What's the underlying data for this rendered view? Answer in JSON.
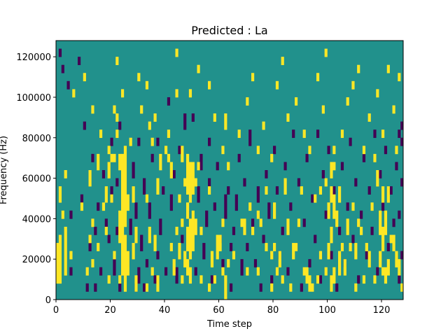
{
  "chart_data": {
    "type": "heatmap",
    "title": "Predicted : La",
    "xlabel": "Time step",
    "ylabel": "Frequency (Hz)",
    "xlim": [
      0,
      128
    ],
    "ylim": [
      0,
      128000
    ],
    "x_ticks": [
      0,
      20,
      40,
      60,
      80,
      100,
      120
    ],
    "y_ticks": [
      0,
      20000,
      40000,
      60000,
      80000,
      100000,
      120000
    ],
    "x_tick_labels": [
      "0",
      "20",
      "40",
      "60",
      "80",
      "100",
      "120"
    ],
    "y_tick_labels": [
      "0",
      "20000",
      "40000",
      "60000",
      "80000",
      "100000",
      "120000"
    ],
    "n_time_steps": 128,
    "n_freq_bins": 32,
    "bin_hz": 4000,
    "colormap": "viridis",
    "colors": {
      "low": "#440154",
      "mid": "#21918c",
      "high": "#fde725"
    },
    "background_value": 0,
    "high_cells": [
      [
        0,
        2,
        7
      ],
      [
        1,
        2,
        8
      ],
      [
        3,
        3,
        9
      ],
      [
        5,
        5,
        6
      ],
      [
        2,
        10,
        11
      ],
      [
        1,
        12,
        14
      ],
      [
        3,
        15,
        16
      ],
      [
        11,
        3,
        4
      ],
      [
        12,
        7,
        8
      ],
      [
        9,
        11,
        12
      ],
      [
        12,
        14,
        16
      ],
      [
        13,
        4,
        5
      ],
      [
        13,
        9,
        10
      ],
      [
        15,
        6,
        7
      ],
      [
        15,
        16,
        18
      ],
      [
        17,
        11,
        12
      ],
      [
        18,
        8,
        9
      ],
      [
        18,
        12,
        14
      ],
      [
        19,
        2,
        3
      ],
      [
        19,
        15,
        17
      ],
      [
        20,
        12,
        13
      ],
      [
        21,
        5,
        6
      ],
      [
        21,
        17,
        18
      ],
      [
        22,
        22,
        23
      ],
      [
        22,
        29,
        30
      ],
      [
        23,
        2,
        3
      ],
      [
        23,
        7,
        11
      ],
      [
        23,
        16,
        18
      ],
      [
        24,
        3,
        8
      ],
      [
        24,
        8,
        13
      ],
      [
        24,
        16,
        18
      ],
      [
        24,
        13,
        16
      ],
      [
        25,
        1,
        8
      ],
      [
        25,
        9,
        17
      ],
      [
        25,
        17,
        19
      ],
      [
        26,
        3,
        6
      ],
      [
        26,
        11,
        13
      ],
      [
        28,
        5,
        7
      ],
      [
        28,
        12,
        14
      ],
      [
        29,
        1,
        3
      ],
      [
        29,
        7,
        9
      ],
      [
        33,
        1,
        2
      ],
      [
        33,
        12,
        13
      ],
      [
        34,
        7,
        9
      ],
      [
        35,
        3,
        4
      ],
      [
        36,
        6,
        8
      ],
      [
        37,
        1,
        3
      ],
      [
        37,
        13,
        15
      ],
      [
        38,
        17,
        18
      ],
      [
        41,
        17,
        18
      ],
      [
        41,
        20,
        21
      ],
      [
        42,
        6,
        7
      ],
      [
        42,
        15,
        17
      ],
      [
        43,
        3,
        5
      ],
      [
        44,
        8,
        9
      ],
      [
        45,
        5,
        7
      ],
      [
        45,
        12,
        13
      ],
      [
        46,
        2,
        3
      ],
      [
        46,
        9,
        10
      ],
      [
        46,
        18,
        19
      ],
      [
        47,
        4,
        6
      ],
      [
        47,
        14,
        15
      ],
      [
        48,
        3,
        5
      ],
      [
        48,
        6,
        9
      ],
      [
        48,
        10,
        12
      ],
      [
        48,
        13,
        16
      ],
      [
        48,
        16,
        18
      ],
      [
        49,
        2,
        4
      ],
      [
        49,
        5,
        10
      ],
      [
        49,
        12,
        17
      ],
      [
        49,
        25,
        26
      ],
      [
        50,
        6,
        11
      ],
      [
        50,
        13,
        17
      ],
      [
        51,
        8,
        10
      ],
      [
        51,
        14,
        15
      ],
      [
        52,
        16,
        17
      ],
      [
        53,
        2,
        3
      ],
      [
        53,
        8,
        9
      ],
      [
        56,
        1,
        2
      ],
      [
        56,
        13,
        14
      ],
      [
        57,
        4,
        6
      ],
      [
        58,
        2,
        3
      ],
      [
        59,
        5,
        8
      ],
      [
        60,
        6,
        8
      ],
      [
        61,
        3,
        4
      ],
      [
        61,
        9,
        10
      ],
      [
        62,
        0,
        3
      ],
      [
        62,
        21,
        23
      ],
      [
        63,
        4,
        5
      ],
      [
        65,
        5,
        6
      ],
      [
        68,
        9,
        10
      ],
      [
        69,
        8,
        10
      ],
      [
        70,
        3,
        4
      ],
      [
        71,
        11,
        12
      ],
      [
        72,
        8,
        9
      ],
      [
        74,
        3,
        4
      ],
      [
        74,
        10,
        11
      ],
      [
        75,
        9,
        10
      ],
      [
        77,
        6,
        7
      ],
      [
        77,
        13,
        14
      ],
      [
        79,
        1,
        2
      ],
      [
        79,
        5,
        6
      ],
      [
        80,
        6,
        7
      ],
      [
        80,
        10,
        12
      ],
      [
        81,
        3,
        4
      ],
      [
        82,
        4,
        6
      ],
      [
        83,
        2,
        3
      ],
      [
        84,
        13,
        15
      ],
      [
        85,
        8,
        9
      ],
      [
        85,
        9,
        10
      ],
      [
        86,
        1,
        2
      ],
      [
        87,
        5,
        7
      ],
      [
        88,
        6,
        7
      ],
      [
        89,
        9,
        10
      ],
      [
        90,
        13,
        14
      ],
      [
        91,
        3,
        4
      ],
      [
        92,
        2,
        4
      ],
      [
        93,
        1,
        3
      ],
      [
        94,
        1,
        2
      ],
      [
        95,
        12,
        13
      ],
      [
        96,
        2,
        3
      ],
      [
        97,
        5,
        6
      ],
      [
        97,
        13,
        14
      ],
      [
        99,
        3,
        4
      ],
      [
        99,
        14,
        15
      ],
      [
        100,
        5,
        7
      ],
      [
        100,
        10,
        12
      ],
      [
        101,
        1,
        3
      ],
      [
        101,
        7,
        9
      ],
      [
        101,
        12,
        14
      ],
      [
        101,
        15,
        17
      ],
      [
        102,
        2,
        4
      ],
      [
        102,
        10,
        13
      ],
      [
        102,
        16,
        17
      ],
      [
        103,
        9,
        11
      ],
      [
        104,
        3,
        6
      ],
      [
        104,
        12,
        14
      ],
      [
        105,
        6,
        7
      ],
      [
        106,
        3,
        5
      ],
      [
        107,
        8,
        10
      ],
      [
        108,
        6,
        7
      ],
      [
        109,
        11,
        12
      ],
      [
        110,
        1,
        2
      ],
      [
        110,
        5,
        7
      ],
      [
        111,
        9,
        10
      ],
      [
        112,
        8,
        9
      ],
      [
        113,
        2,
        3
      ],
      [
        114,
        6,
        7
      ],
      [
        115,
        4,
        6
      ],
      [
        116,
        11,
        12
      ],
      [
        117,
        2,
        3
      ],
      [
        118,
        14,
        16
      ],
      [
        119,
        4,
        6
      ],
      [
        119,
        8,
        11
      ],
      [
        120,
        3,
        4
      ],
      [
        120,
        6,
        9
      ],
      [
        120,
        12,
        14
      ],
      [
        121,
        2,
        4
      ],
      [
        121,
        8,
        11
      ],
      [
        122,
        3,
        5
      ],
      [
        122,
        12,
        14
      ],
      [
        123,
        7,
        8
      ],
      [
        124,
        6,
        8
      ],
      [
        125,
        4,
        6
      ],
      [
        126,
        3,
        5
      ],
      [
        127,
        1,
        2
      ],
      [
        6,
        25,
        26
      ],
      [
        10,
        27,
        28
      ],
      [
        13,
        23,
        24
      ],
      [
        16,
        20,
        21
      ],
      [
        19,
        18,
        19
      ],
      [
        20,
        17,
        18
      ],
      [
        21,
        23,
        24
      ],
      [
        22,
        20,
        21
      ],
      [
        24,
        25,
        26
      ],
      [
        27,
        19,
        20
      ],
      [
        30,
        27,
        28
      ],
      [
        31,
        23,
        24
      ],
      [
        33,
        26,
        27
      ],
      [
        34,
        21,
        22
      ],
      [
        35,
        19,
        20
      ],
      [
        36,
        22,
        23
      ],
      [
        38,
        16,
        17
      ],
      [
        40,
        18,
        19
      ],
      [
        44,
        25,
        26
      ],
      [
        44,
        30,
        31
      ],
      [
        46,
        17,
        18
      ],
      [
        52,
        28,
        29
      ],
      [
        56,
        26,
        27
      ],
      [
        58,
        22,
        23
      ],
      [
        61,
        18,
        19
      ],
      [
        63,
        16,
        17
      ],
      [
        67,
        20,
        21
      ],
      [
        70,
        24,
        25
      ],
      [
        72,
        27,
        28
      ],
      [
        74,
        18,
        19
      ],
      [
        76,
        21,
        22
      ],
      [
        79,
        17,
        18
      ],
      [
        81,
        26,
        27
      ],
      [
        83,
        29,
        30
      ],
      [
        85,
        22,
        23
      ],
      [
        88,
        24,
        25
      ],
      [
        91,
        20,
        21
      ],
      [
        93,
        18,
        19
      ],
      [
        96,
        27,
        28
      ],
      [
        98,
        23,
        24
      ],
      [
        99,
        30,
        31
      ],
      [
        102,
        18,
        19
      ],
      [
        105,
        20,
        21
      ],
      [
        107,
        24,
        25
      ],
      [
        109,
        26,
        27
      ],
      [
        111,
        28,
        29
      ],
      [
        113,
        18,
        19
      ],
      [
        115,
        22,
        23
      ],
      [
        117,
        17,
        18
      ],
      [
        118,
        25,
        26
      ],
      [
        120,
        20,
        21
      ],
      [
        122,
        28,
        29
      ],
      [
        124,
        23,
        24
      ],
      [
        125,
        18,
        19
      ],
      [
        126,
        27,
        28
      ]
    ],
    "low_cells": [
      [
        1,
        30,
        31
      ],
      [
        2,
        28,
        29
      ],
      [
        4,
        26,
        27
      ],
      [
        5,
        10,
        11
      ],
      [
        5,
        3,
        4
      ],
      [
        8,
        29,
        30
      ],
      [
        9,
        12,
        13
      ],
      [
        10,
        21,
        22
      ],
      [
        11,
        1,
        2
      ],
      [
        12,
        6,
        7
      ],
      [
        13,
        17,
        18
      ],
      [
        14,
        1,
        2
      ],
      [
        14,
        8,
        9
      ],
      [
        15,
        11,
        12
      ],
      [
        16,
        3,
        4
      ],
      [
        17,
        15,
        16
      ],
      [
        18,
        9,
        10
      ],
      [
        19,
        7,
        8
      ],
      [
        20,
        12,
        14
      ],
      [
        20,
        19,
        20
      ],
      [
        21,
        3,
        5
      ],
      [
        22,
        8,
        9
      ],
      [
        22,
        14,
        15
      ],
      [
        23,
        1,
        2
      ],
      [
        23,
        21,
        22
      ],
      [
        25,
        11,
        13
      ],
      [
        26,
        4,
        6
      ],
      [
        27,
        8,
        10
      ],
      [
        28,
        15,
        17
      ],
      [
        29,
        1,
        2
      ],
      [
        29,
        10,
        12
      ],
      [
        30,
        2,
        4
      ],
      [
        30,
        19,
        20
      ],
      [
        31,
        6,
        8
      ],
      [
        32,
        1,
        2
      ],
      [
        32,
        13,
        15
      ],
      [
        33,
        4,
        5
      ],
      [
        34,
        10,
        12
      ],
      [
        35,
        17,
        18
      ],
      [
        36,
        2,
        3
      ],
      [
        37,
        5,
        6
      ],
      [
        37,
        19,
        20
      ],
      [
        38,
        8,
        10
      ],
      [
        39,
        13,
        14
      ],
      [
        40,
        3,
        4
      ],
      [
        41,
        24,
        25
      ],
      [
        42,
        11,
        13
      ],
      [
        43,
        15,
        16
      ],
      [
        44,
        2,
        4
      ],
      [
        45,
        18,
        19
      ],
      [
        46,
        7,
        8
      ],
      [
        47,
        21,
        23
      ],
      [
        48,
        10,
        11
      ],
      [
        50,
        22,
        23
      ],
      [
        51,
        3,
        4
      ],
      [
        52,
        12,
        14
      ],
      [
        53,
        16,
        18
      ],
      [
        54,
        5,
        7
      ],
      [
        55,
        9,
        11
      ],
      [
        56,
        14,
        15
      ],
      [
        56,
        19,
        20
      ],
      [
        57,
        2,
        3
      ],
      [
        58,
        11,
        12
      ],
      [
        59,
        16,
        17
      ],
      [
        60,
        7,
        8
      ],
      [
        61,
        4,
        5
      ],
      [
        62,
        10,
        13
      ],
      [
        63,
        13,
        14
      ],
      [
        64,
        6,
        7
      ],
      [
        64,
        1,
        2
      ],
      [
        65,
        8,
        9
      ],
      [
        66,
        11,
        13
      ],
      [
        67,
        17,
        18
      ],
      [
        68,
        3,
        5
      ],
      [
        69,
        14,
        15
      ],
      [
        70,
        6,
        7
      ],
      [
        71,
        19,
        21
      ],
      [
        72,
        9,
        10
      ],
      [
        73,
        4,
        5
      ],
      [
        74,
        12,
        14
      ],
      [
        75,
        1,
        2
      ],
      [
        76,
        7,
        8
      ],
      [
        77,
        15,
        16
      ],
      [
        78,
        10,
        12
      ],
      [
        79,
        2,
        3
      ],
      [
        80,
        18,
        19
      ],
      [
        81,
        13,
        14
      ],
      [
        82,
        5,
        6
      ],
      [
        83,
        8,
        9
      ],
      [
        84,
        16,
        17
      ],
      [
        85,
        3,
        4
      ],
      [
        86,
        11,
        12
      ],
      [
        87,
        20,
        21
      ],
      [
        88,
        6,
        7
      ],
      [
        89,
        14,
        15
      ],
      [
        90,
        1,
        2
      ],
      [
        91,
        9,
        10
      ],
      [
        92,
        17,
        18
      ],
      [
        93,
        4,
        5
      ],
      [
        94,
        12,
        13
      ],
      [
        95,
        7,
        8
      ],
      [
        96,
        20,
        21
      ],
      [
        97,
        2,
        3
      ],
      [
        98,
        15,
        16
      ],
      [
        99,
        10,
        11
      ],
      [
        100,
        18,
        19
      ],
      [
        101,
        5,
        6
      ],
      [
        102,
        13,
        14
      ],
      [
        103,
        1,
        2
      ],
      [
        104,
        8,
        9
      ],
      [
        105,
        16,
        17
      ],
      [
        106,
        4,
        5
      ],
      [
        107,
        11,
        12
      ],
      [
        108,
        19,
        20
      ],
      [
        109,
        7,
        8
      ],
      [
        110,
        14,
        15
      ],
      [
        111,
        2,
        3
      ],
      [
        112,
        10,
        11
      ],
      [
        113,
        17,
        18
      ],
      [
        114,
        5,
        6
      ],
      [
        115,
        13,
        14
      ],
      [
        116,
        8,
        9
      ],
      [
        117,
        20,
        21
      ],
      [
        118,
        3,
        4
      ],
      [
        119,
        15,
        16
      ],
      [
        120,
        11,
        12
      ],
      [
        121,
        18,
        19
      ],
      [
        122,
        6,
        7
      ],
      [
        123,
        13,
        14
      ],
      [
        124,
        9,
        10
      ],
      [
        125,
        16,
        17
      ],
      [
        126,
        2,
        3
      ],
      [
        126,
        10,
        11
      ],
      [
        127,
        5,
        6
      ],
      [
        127,
        14,
        15
      ],
      [
        127,
        19,
        20
      ],
      [
        126,
        20,
        21
      ],
      [
        127,
        21,
        22
      ]
    ]
  }
}
